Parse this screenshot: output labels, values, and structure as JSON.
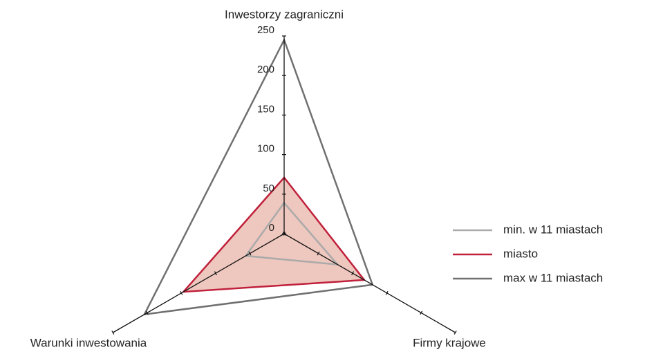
{
  "chart_data": {
    "type": "radar",
    "categories": [
      "Inwestorzy zagraniczni",
      "Firmy krajowe",
      "Warunki inwestowania"
    ],
    "series": [
      {
        "name": "min. w 11 miastach",
        "color": "#aaaaaa",
        "values": [
          39,
          78,
          56
        ]
      },
      {
        "name": "miasto",
        "color": "#c0203a",
        "fill": "#e2a293",
        "values": [
          71,
          117,
          147
        ]
      },
      {
        "name": "max w 11 miastach",
        "color": "#707070",
        "values": [
          245,
          129,
          204
        ]
      }
    ],
    "rlim": [
      0,
      250
    ],
    "rticks": [
      0,
      50,
      100,
      150,
      200,
      250
    ],
    "legend": "right"
  }
}
